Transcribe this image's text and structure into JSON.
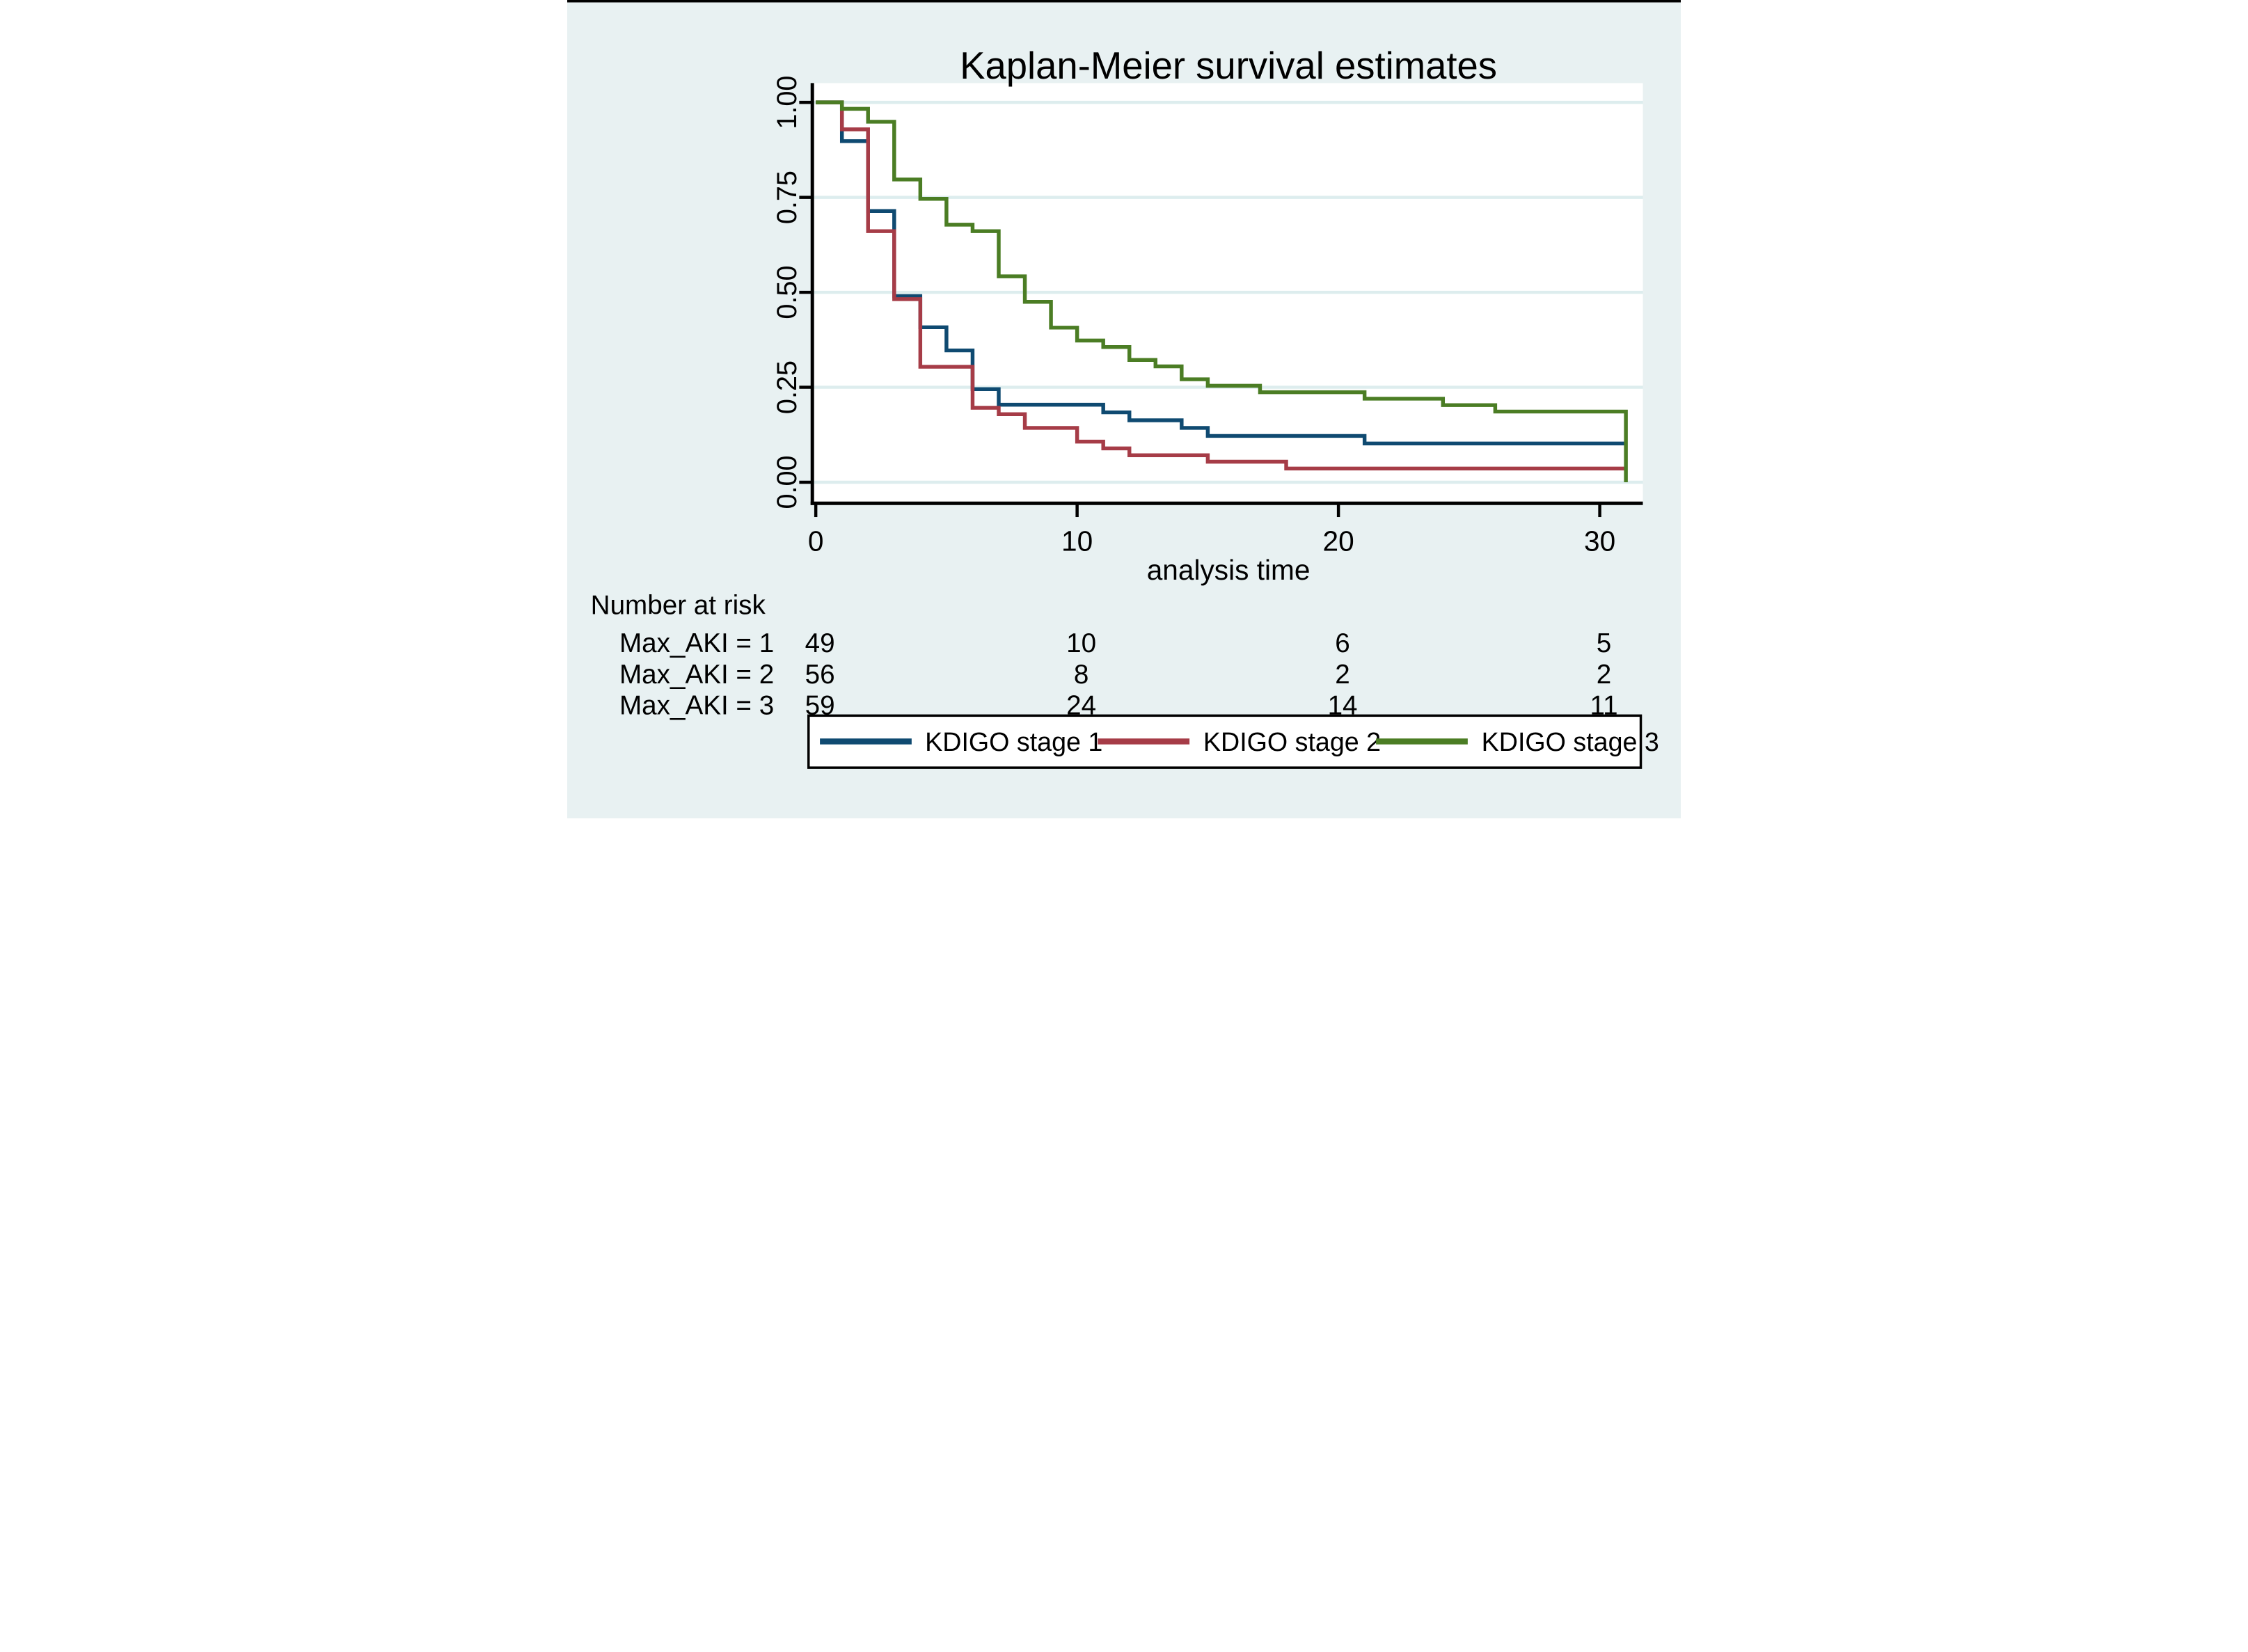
{
  "figure": {
    "background": "#e8f1f2",
    "plot_background": "#ffffff",
    "grid_color": "#ddedee",
    "axis_color": "#000000",
    "title_color": "#1a2b52",
    "top_border_color": "#000000"
  },
  "chart_data": {
    "type": "line",
    "subtype": "kaplan-meier-step",
    "title": "Kaplan-Meier survival estimates",
    "xlabel": "analysis time",
    "ylabel": "",
    "xlim": [
      0,
      31.65
    ],
    "ylim": [
      0,
      1
    ],
    "xticks": [
      0,
      10,
      20,
      30
    ],
    "ytick_labels": [
      "0.00",
      "0.25",
      "0.50",
      "0.75",
      "1.00"
    ],
    "grid": "horizontal",
    "legend_position": "bottom",
    "series": [
      {
        "name": "KDIGO stage 1",
        "color": "#0f4a71",
        "group": "Max_AKI = 1",
        "n_start": 49,
        "end_time": 31,
        "points": [
          [
            0,
            1.0
          ],
          [
            1,
            0.898
          ],
          [
            2,
            0.714
          ],
          [
            3,
            0.49
          ],
          [
            4,
            0.408
          ],
          [
            5,
            0.347
          ],
          [
            6,
            0.245
          ],
          [
            7,
            0.204
          ],
          [
            11,
            0.184
          ],
          [
            12,
            0.163
          ],
          [
            14,
            0.143
          ],
          [
            15,
            0.122
          ],
          [
            21,
            0.102
          ]
        ]
      },
      {
        "name": "KDIGO stage 2",
        "color": "#a63c47",
        "group": "Max_AKI = 2",
        "n_start": 56,
        "end_time": 31,
        "points": [
          [
            0,
            1.0
          ],
          [
            1,
            0.929
          ],
          [
            2,
            0.661
          ],
          [
            3,
            0.482
          ],
          [
            4,
            0.304
          ],
          [
            6,
            0.196
          ],
          [
            7,
            0.179
          ],
          [
            8,
            0.143
          ],
          [
            10,
            0.107
          ],
          [
            11,
            0.089
          ],
          [
            12,
            0.071
          ],
          [
            15,
            0.054
          ],
          [
            18,
            0.036
          ]
        ]
      },
      {
        "name": "KDIGO stage 3",
        "color": "#4b7d24",
        "group": "Max_AKI = 3",
        "n_start": 59,
        "end_time": 31,
        "points": [
          [
            0,
            1.0
          ],
          [
            1,
            0.983
          ],
          [
            2,
            0.949
          ],
          [
            3,
            0.797
          ],
          [
            4,
            0.746
          ],
          [
            5,
            0.678
          ],
          [
            6,
            0.661
          ],
          [
            7,
            0.542
          ],
          [
            8,
            0.475
          ],
          [
            9,
            0.407
          ],
          [
            10,
            0.373
          ],
          [
            11,
            0.356
          ],
          [
            12,
            0.322
          ],
          [
            13,
            0.305
          ],
          [
            14,
            0.271
          ],
          [
            15,
            0.254
          ],
          [
            17,
            0.237
          ],
          [
            21,
            0.22
          ],
          [
            24,
            0.203
          ],
          [
            26,
            0.186
          ],
          [
            31,
            0.0
          ]
        ]
      }
    ]
  },
  "risk_table": {
    "header": "Number at risk",
    "times": [
      0,
      10,
      20,
      30
    ],
    "rows": [
      {
        "label": "Max_AKI = 1",
        "counts": [
          "49",
          "10",
          "6",
          "5"
        ]
      },
      {
        "label": "Max_AKI = 2",
        "counts": [
          "56",
          "8",
          "2",
          "2"
        ]
      },
      {
        "label": "Max_AKI = 3",
        "counts": [
          "59",
          "24",
          "14",
          "11"
        ]
      }
    ]
  }
}
